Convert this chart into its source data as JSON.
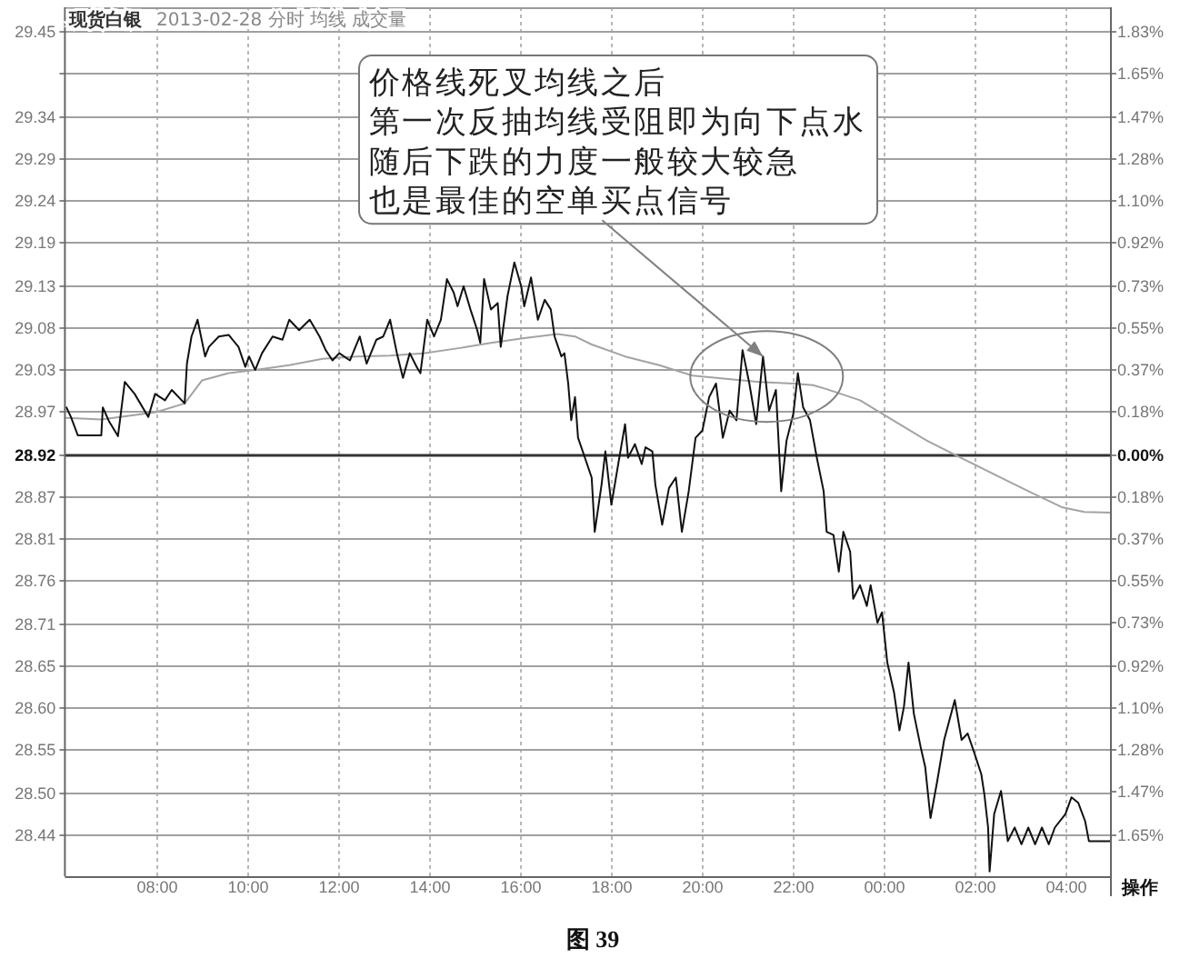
{
  "chart_data": {
    "type": "line",
    "title": "现货白银",
    "subtitle": "2013-02-28 分时 均线 成交量",
    "series": [
      {
        "color": "#111111",
        "x": [
          "2013-02-28T06:02",
          "2013-02-28T06:08",
          "2013-02-28T06:17",
          "2013-02-28T06:48",
          "2013-02-28T06:50",
          "2013-02-28T06:58",
          "2013-02-28T07:10",
          "2013-02-28T07:19",
          "2013-02-28T07:32",
          "2013-02-28T07:50",
          "2013-02-28T07:59",
          "2013-02-28T08:12",
          "2013-02-28T08:21",
          "2013-02-28T08:38",
          "2013-02-28T08:41",
          "2013-02-28T08:47",
          "2013-02-28T08:55",
          "2013-02-28T09:05",
          "2013-02-28T09:10",
          "2013-02-28T09:23",
          "2013-02-28T09:36",
          "2013-02-28T09:49",
          "2013-02-28T09:58",
          "2013-02-28T10:03",
          "2013-02-28T10:11",
          "2013-02-28T10:20",
          "2013-02-28T10:34",
          "2013-02-28T10:47",
          "2013-02-28T10:56",
          "2013-02-28T11:09",
          "2013-02-28T11:23",
          "2013-02-28T11:36",
          "2013-02-28T11:44",
          "2013-02-28T11:53",
          "2013-02-28T12:02",
          "2013-02-28T12:16",
          "2013-02-28T12:29",
          "2013-02-28T12:38",
          "2013-02-28T12:51",
          "2013-02-28T13:00",
          "2013-02-28T13:09",
          "2013-02-28T13:18",
          "2013-02-28T13:26",
          "2013-02-28T13:35",
          "2013-02-28T13:44",
          "2013-02-28T13:49",
          "2013-02-28T13:58",
          "2013-02-28T14:07",
          "2013-02-28T14:16",
          "2013-02-28T14:24",
          "2013-02-28T14:33",
          "2013-02-28T14:38",
          "2013-02-28T14:46",
          "2013-02-28T14:55",
          "2013-02-28T15:04",
          "2013-02-28T15:08",
          "2013-02-28T15:13",
          "2013-02-28T15:22",
          "2013-02-28T15:31",
          "2013-02-28T15:35",
          "2013-02-28T15:44",
          "2013-02-28T15:53",
          "2013-02-28T16:02",
          "2013-02-28T16:06",
          "2013-02-28T16:15",
          "2013-02-28T16:24",
          "2013-02-28T16:33",
          "2013-02-28T16:41",
          "2013-02-28T16:46",
          "2013-02-28T16:55",
          "2013-02-28T16:59",
          "2013-02-28T17:04",
          "2013-02-28T17:08",
          "2013-02-28T17:13",
          "2013-02-28T17:17",
          "2013-02-28T17:26",
          "2013-02-28T17:35",
          "2013-02-28T17:39",
          "2013-02-28T17:48",
          "2013-02-28T17:53",
          "2013-02-28T18:01",
          "2013-02-28T18:10",
          "2013-02-28T18:19",
          "2013-02-28T18:23",
          "2013-02-28T18:32",
          "2013-02-28T18:41",
          "2013-02-28T18:46",
          "2013-02-28T18:55",
          "2013-02-28T18:59",
          "2013-02-28T19:08",
          "2013-02-28T19:17",
          "2013-02-28T19:26",
          "2013-02-28T19:34",
          "2013-02-28T19:43",
          "2013-02-28T19:52",
          "2013-02-28T20:01",
          "2013-02-28T20:10",
          "2013-02-28T20:19",
          "2013-02-28T20:28",
          "2013-02-28T20:37",
          "2013-02-28T20:46",
          "2013-02-28T20:54",
          "2013-02-28T21:03",
          "2013-02-28T21:12",
          "2013-02-28T21:21",
          "2013-02-28T21:29",
          "2013-02-28T21:38",
          "2013-02-28T21:45",
          "2013-02-28T21:52",
          "2013-02-28T22:01",
          "2013-02-28T22:07",
          "2013-02-28T22:14",
          "2013-02-28T22:23",
          "2013-02-28T22:32",
          "2013-02-28T22:41",
          "2013-02-28T22:45",
          "2013-02-28T22:54",
          "2013-02-28T23:01",
          "2013-02-28T23:07",
          "2013-02-28T23:16",
          "2013-02-28T23:20",
          "2013-02-28T23:29",
          "2013-02-28T23:38",
          "2013-02-28T23:43",
          "2013-02-28T23:52",
          "2013-02-28T23:58",
          "2013-03-01T00:05",
          "2013-03-01T00:14",
          "2013-03-01T00:21",
          "2013-03-01T00:27",
          "2013-03-01T00:33",
          "2013-03-01T00:40",
          "2013-03-01T00:49",
          "2013-03-01T00:55",
          "2013-03-01T01:02",
          "2013-03-01T01:11",
          "2013-03-01T01:20",
          "2013-03-01T01:34",
          "2013-03-01T01:43",
          "2013-03-01T01:51",
          "2013-03-01T02:00",
          "2013-03-01T02:09",
          "2013-03-01T02:13",
          "2013-03-01T02:18",
          "2013-03-01T02:20",
          "2013-03-01T02:26",
          "2013-03-01T02:35",
          "2013-03-01T02:44",
          "2013-03-01T02:53",
          "2013-03-01T03:02",
          "2013-03-01T03:11",
          "2013-03-01T03:20",
          "2013-03-01T03:29",
          "2013-03-01T03:38",
          "2013-03-01T03:46",
          "2013-03-01T04:00",
          "2013-03-01T04:08",
          "2013-03-01T04:17",
          "2013-03-01T04:26",
          "2013-03-01T04:31",
          "2013-03-01T05:00"
        ],
        "values": [
          28.978,
          28.966,
          28.943,
          28.943,
          28.978,
          28.961,
          28.942,
          29.01,
          28.995,
          28.966,
          28.995,
          28.987,
          29.0,
          28.983,
          29.033,
          29.067,
          29.088,
          29.042,
          29.054,
          29.067,
          29.069,
          29.054,
          29.029,
          29.042,
          29.025,
          29.046,
          29.067,
          29.063,
          29.088,
          29.075,
          29.088,
          29.067,
          29.05,
          29.037,
          29.046,
          29.037,
          29.067,
          29.033,
          29.063,
          29.067,
          29.088,
          29.046,
          29.015,
          29.046,
          29.029,
          29.021,
          29.088,
          29.067,
          29.088,
          29.139,
          29.122,
          29.105,
          29.13,
          29.101,
          29.075,
          29.059,
          29.139,
          29.101,
          29.109,
          29.054,
          29.118,
          29.16,
          29.13,
          29.105,
          29.141,
          29.088,
          29.113,
          29.101,
          29.067,
          29.042,
          29.046,
          29.008,
          28.962,
          28.991,
          28.94,
          28.915,
          28.89,
          28.822,
          28.881,
          28.923,
          28.856,
          28.907,
          28.957,
          28.915,
          28.932,
          28.907,
          28.928,
          28.923,
          28.881,
          28.831,
          28.877,
          28.89,
          28.822,
          28.873,
          28.94,
          28.949,
          28.991,
          29.008,
          28.94,
          28.974,
          28.962,
          29.05,
          29.008,
          28.957,
          29.042,
          28.974,
          29.0,
          28.873,
          28.936,
          28.97,
          29.021,
          28.978,
          28.962,
          28.915,
          28.873,
          28.822,
          28.818,
          28.772,
          28.822,
          28.797,
          28.738,
          28.755,
          28.729,
          28.755,
          28.708,
          28.721,
          28.658,
          28.62,
          28.573,
          28.603,
          28.658,
          28.594,
          28.552,
          28.527,
          28.463,
          28.51,
          28.561,
          28.611,
          28.561,
          28.569,
          28.544,
          28.518,
          28.493,
          28.451,
          28.396,
          28.468,
          28.497,
          28.434,
          28.451,
          28.43,
          28.451,
          28.43,
          28.451,
          28.43,
          28.451,
          28.468,
          28.489,
          28.482,
          28.459,
          28.434,
          28.434
        ]
      },
      {
        "color": "#a3a3a3",
        "x": [
          "2013-02-28T06:02",
          "2013-02-28T06:48",
          "2013-02-28T08:00",
          "2013-02-28T08:38",
          "2013-02-28T09:01",
          "2013-02-28T09:36",
          "2013-02-28T10:11",
          "2013-02-28T10:56",
          "2013-02-28T11:40",
          "2013-02-28T12:25",
          "2013-02-28T13:09",
          "2013-02-28T13:53",
          "2013-02-28T14:37",
          "2013-02-28T15:22",
          "2013-02-28T16:06",
          "2013-02-28T16:50",
          "2013-02-28T17:13",
          "2013-02-28T17:35",
          "2013-02-28T18:19",
          "2013-02-28T19:04",
          "2013-02-28T19:48",
          "2013-02-28T20:32",
          "2013-02-28T21:16",
          "2013-02-28T22:01",
          "2013-02-28T22:27",
          "2013-02-28T22:45",
          "2013-02-28T23:29",
          "2013-03-01T00:14",
          "2013-03-01T00:58",
          "2013-03-01T01:42",
          "2013-03-01T02:26",
          "2013-03-01T03:11",
          "2013-03-01T03:55",
          "2013-03-01T04:25",
          "2013-03-01T05:00"
        ],
        "values": [
          28.965,
          28.963,
          28.972,
          28.983,
          29.012,
          29.021,
          29.025,
          29.031,
          29.039,
          29.042,
          29.043,
          29.046,
          29.052,
          29.059,
          29.065,
          29.07,
          29.067,
          29.057,
          29.042,
          29.031,
          29.018,
          29.014,
          29.01,
          29.008,
          29.006,
          29.001,
          28.987,
          28.961,
          28.936,
          28.915,
          28.894,
          28.873,
          28.853,
          28.847,
          28.846
        ]
      }
    ],
    "xlim": [
      "2013-02-28T06:00",
      "2013-03-01T05:00"
    ],
    "xticks": [
      {
        "value": "2013-02-28T08:00",
        "label": "08:00"
      },
      {
        "value": "2013-02-28T10:00",
        "label": "10:00"
      },
      {
        "value": "2013-02-28T12:00",
        "label": "12:00"
      },
      {
        "value": "2013-02-28T14:00",
        "label": "14:00"
      },
      {
        "value": "2013-02-28T16:00",
        "label": "16:00"
      },
      {
        "value": "2013-02-28T18:00",
        "label": "18:00"
      },
      {
        "value": "2013-02-28T20:00",
        "label": "20:00"
      },
      {
        "value": "2013-02-28T22:00",
        "label": "22:00"
      },
      {
        "value": "2013-03-01T00:00",
        "label": "00:00"
      },
      {
        "value": "2013-03-01T02:00",
        "label": "02:00"
      },
      {
        "value": "2013-03-01T04:00",
        "label": "04:00"
      }
    ],
    "ylim": [
      28.39,
      29.48
    ],
    "yticks": [
      {
        "value": 28.443,
        "label": "28.44"
      },
      {
        "value": 28.496,
        "label": "28.50"
      },
      {
        "value": 28.549,
        "label": "28.55"
      },
      {
        "value": 28.602,
        "label": "28.60"
      },
      {
        "value": 28.655,
        "label": "28.65"
      },
      {
        "value": 28.708,
        "label": "28.71"
      },
      {
        "value": 28.761,
        "label": "28.76"
      },
      {
        "value": 28.814,
        "label": "28.81"
      },
      {
        "value": 28.867,
        "label": "28.87"
      },
      28.92,
      {
        "value": 28.973,
        "label": "28.97"
      },
      {
        "value": 29.026,
        "label": "29.03"
      },
      {
        "value": 29.079,
        "label": "29.08"
      },
      {
        "value": 29.132,
        "label": "29.13"
      },
      {
        "value": 29.185,
        "label": "29.19"
      },
      {
        "value": 29.238,
        "label": "29.24"
      },
      {
        "value": 29.291,
        "label": "29.29"
      },
      {
        "value": 29.344,
        "label": "29.34"
      },
      {
        "value": 29.397,
        "label": null
      },
      29.45
    ],
    "y2lim": [
      -1.833,
      1.936
    ],
    "y2ticks": [
      {
        "value": -1.65,
        "label": "1.65%"
      },
      {
        "value": -1.466,
        "label": "1.47%"
      },
      {
        "value": -1.283,
        "label": "1.28%"
      },
      {
        "value": -1.1,
        "label": "1.10%"
      },
      {
        "value": -0.917,
        "label": "0.92%"
      },
      {
        "value": -0.733,
        "label": "0.73%"
      },
      {
        "value": -0.55,
        "label": "0.55%"
      },
      {
        "value": -0.367,
        "label": "0.37%"
      },
      {
        "value": -0.183,
        "label": "0.18%"
      },
      {
        "value": 0,
        "label": "0.00%"
      },
      {
        "value": 0.183,
        "label": "0.18%"
      },
      {
        "value": 0.367,
        "label": "0.37%"
      },
      {
        "value": 0.55,
        "label": "0.55%"
      },
      {
        "value": 0.733,
        "label": "0.73%"
      },
      {
        "value": 0.917,
        "label": "0.92%"
      },
      {
        "value": 1.1,
        "label": "1.10%"
      },
      {
        "value": 1.283,
        "label": "1.28%"
      },
      {
        "value": 1.466,
        "label": "1.47%"
      },
      {
        "value": 1.65,
        "label": "1.65%"
      },
      {
        "value": 1.833,
        "label": "1.83%"
      }
    ],
    "ref_lines": [
      {
        "axis": "y",
        "value": 28.92,
        "color": "#333333"
      }
    ],
    "grid": true,
    "annotations": [
      "价格线死叉均线之后",
      "第一次反抽均线受阻即为向下点水",
      "随后下跌的力度一般较大较急",
      {
        "text": "也是最佳的空单买点信号",
        "x": "2013-02-28T21:21",
        "y": 29.042
      },
      "操作",
      "图 39"
    ]
  }
}
